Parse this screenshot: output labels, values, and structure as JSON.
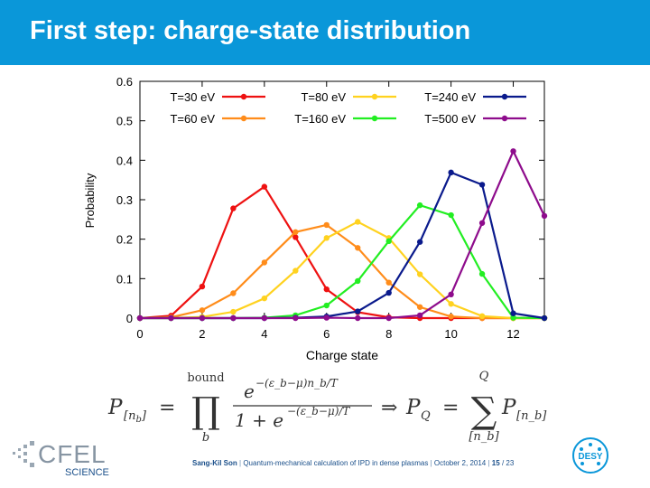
{
  "slide": {
    "title": "First step: charge-state distribution"
  },
  "chart_data": {
    "type": "line",
    "title": "",
    "xlabel": "Charge state",
    "ylabel": "Probability",
    "xlim": [
      0,
      13
    ],
    "ylim": [
      0,
      0.6
    ],
    "xticks": [
      0,
      2,
      4,
      6,
      8,
      10,
      12
    ],
    "yticks": [
      0,
      0.1,
      0.2,
      0.3,
      0.4,
      0.5,
      0.6
    ],
    "ytick_labels": [
      "0",
      "0.1",
      "0.2",
      "0.3",
      "0.4",
      "0.5",
      "0.6"
    ],
    "grid": false,
    "legend_position": "top",
    "x": [
      0,
      1,
      2,
      3,
      4,
      5,
      6,
      7,
      8,
      9,
      10,
      11,
      12,
      13
    ],
    "series": [
      {
        "name": "T=30 eV",
        "color": "#ee1111",
        "values": [
          0,
          0.006,
          0.08,
          0.278,
          0.333,
          0.205,
          0.073,
          0.015,
          0.002,
          0,
          0,
          0,
          0,
          0
        ]
      },
      {
        "name": "T=60 eV",
        "color": "#ff8c1a",
        "values": [
          0,
          0.002,
          0.02,
          0.063,
          0.141,
          0.218,
          0.236,
          0.178,
          0.09,
          0.028,
          0.004,
          0,
          0,
          0
        ]
      },
      {
        "name": "T=80 eV",
        "color": "#ffd21f",
        "values": [
          0,
          0,
          0.003,
          0.016,
          0.05,
          0.12,
          0.203,
          0.244,
          0.203,
          0.111,
          0.036,
          0.005,
          0,
          0
        ]
      },
      {
        "name": "T=160 eV",
        "color": "#22ee22",
        "values": [
          0,
          0,
          0,
          0,
          0.001,
          0.007,
          0.032,
          0.094,
          0.195,
          0.286,
          0.261,
          0.112,
          0.001,
          0
        ]
      },
      {
        "name": "T=240 eV",
        "color": "#0a1a8c",
        "values": [
          0,
          0,
          0,
          0,
          0,
          0.001,
          0.004,
          0.017,
          0.064,
          0.193,
          0.369,
          0.338,
          0.012,
          0
        ]
      },
      {
        "name": "T=500 eV",
        "color": "#8e0c8c",
        "values": [
          0,
          0,
          0,
          0,
          0,
          0,
          0.001,
          0,
          0,
          0.007,
          0.06,
          0.241,
          0.423,
          0.259
        ]
      }
    ]
  },
  "formula": {
    "lhs": "P",
    "lhs_sub": "[n",
    "lhs_sub_b": "b",
    "lhs_sub_close": "]",
    "eq": "=",
    "prod": "∏",
    "prod_upper": "bound",
    "prod_lower": "b",
    "numerator": "e",
    "numerator_exp": "−(ε_b−μ)n_b/T",
    "denominator": "1 + e",
    "denominator_exp": "−(ε_b−μ)/T",
    "implies": "⇒",
    "pq": "P",
    "pq_sub": "Q",
    "eq2": "=",
    "sum": "∑",
    "sum_upper": "Q",
    "sum_lower": "[n_b]",
    "rhs": "P",
    "rhs_sub": "[n_b]"
  },
  "footer": {
    "author": "Sang-Kil Son",
    "sep1": "|",
    "talk": "Quantum-mechanical calculation of IPD in dense plasmas",
    "sep2": "|",
    "date": "October 2, 2014",
    "sep3": "|",
    "page": "15",
    "page_sep": "/",
    "total": "23"
  },
  "logos": {
    "cfel_text": "CFEL",
    "cfel_sub": "SCIENCE",
    "desy_text": "DESY",
    "cfel_color": "#1a4f8a",
    "desy_color": "#0a97d9"
  }
}
